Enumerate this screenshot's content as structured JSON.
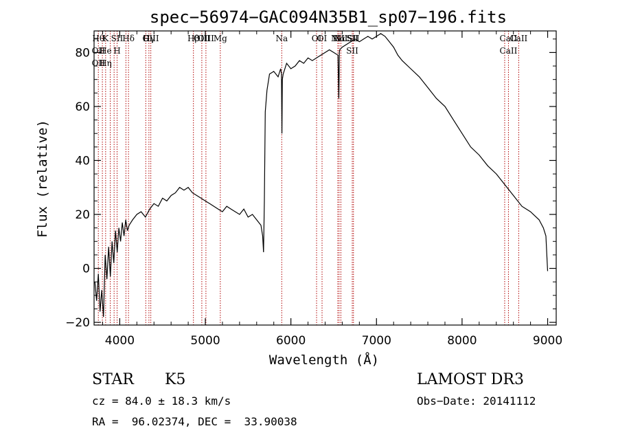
{
  "chart_data": {
    "type": "line",
    "title": "spec−56974−GAC094N35B1_sp07−196.fits",
    "xlabel": "Wavelength (Å)",
    "ylabel": "Flux (relative)",
    "xlim": [
      3700,
      9100
    ],
    "ylim": [
      -21,
      88
    ],
    "xticks": [
      {
        "value": 4000,
        "label": "4000"
      },
      {
        "value": 5000,
        "label": "5000"
      },
      {
        "value": 6000,
        "label": "6000"
      },
      {
        "value": 7000,
        "label": "7000"
      },
      {
        "value": 8000,
        "label": "8000"
      },
      {
        "value": 9000,
        "label": "9000"
      }
    ],
    "yticks": [
      {
        "value": -20,
        "label": "−20"
      },
      {
        "value": 0,
        "label": "0"
      },
      {
        "value": 20,
        "label": "20"
      },
      {
        "value": 40,
        "label": "40"
      },
      {
        "value": 60,
        "label": "60"
      },
      {
        "value": 80,
        "label": "80"
      }
    ],
    "series": [
      {
        "name": "flux",
        "x": [
          3710,
          3730,
          3750,
          3770,
          3790,
          3810,
          3830,
          3850,
          3870,
          3890,
          3910,
          3930,
          3950,
          3970,
          3990,
          4010,
          4030,
          4050,
          4070,
          4090,
          4110,
          4150,
          4200,
          4250,
          4300,
          4350,
          4400,
          4450,
          4500,
          4550,
          4600,
          4650,
          4700,
          4750,
          4800,
          4850,
          4900,
          4950,
          5000,
          5050,
          5100,
          5150,
          5200,
          5250,
          5300,
          5350,
          5400,
          5450,
          5500,
          5550,
          5600,
          5650,
          5670,
          5680,
          5690,
          5700,
          5720,
          5750,
          5800,
          5850,
          5880,
          5890,
          5895,
          5900,
          5910,
          5950,
          6000,
          6050,
          6100,
          6150,
          6200,
          6250,
          6300,
          6350,
          6400,
          6450,
          6500,
          6550,
          6560,
          6563,
          6566,
          6570,
          6600,
          6650,
          6700,
          6750,
          6800,
          6850,
          6900,
          6950,
          7000,
          7050,
          7100,
          7150,
          7200,
          7250,
          7300,
          7400,
          7500,
          7600,
          7700,
          7800,
          7900,
          8000,
          8100,
          8200,
          8300,
          8400,
          8500,
          8600,
          8700,
          8800,
          8900,
          8950,
          8980,
          9000
        ],
        "values": [
          -5,
          -12,
          -2,
          -16,
          -8,
          -18,
          5,
          -4,
          8,
          -3,
          10,
          2,
          14,
          6,
          15,
          10,
          17,
          12,
          18,
          14,
          16,
          18,
          20,
          21,
          19,
          22,
          24,
          23,
          26,
          25,
          27,
          28,
          30,
          29,
          30,
          28,
          27,
          26,
          25,
          24,
          23,
          22,
          21,
          23,
          22,
          21,
          20,
          22,
          19,
          20,
          18,
          16,
          12,
          6,
          25,
          58,
          66,
          72,
          73,
          71,
          74,
          72,
          50,
          70,
          72,
          76,
          74,
          75,
          77,
          76,
          78,
          77,
          78,
          79,
          80,
          81,
          80,
          79,
          63,
          70,
          80,
          81,
          82,
          83,
          84,
          85,
          84,
          85,
          86,
          85,
          86,
          87,
          86,
          84,
          82,
          79,
          77,
          74,
          71,
          67,
          63,
          60,
          55,
          50,
          45,
          42,
          38,
          35,
          31,
          27,
          23,
          21,
          18,
          15,
          12,
          -1
        ]
      }
    ],
    "lines": [
      {
        "wl": 3750,
        "labels": [
          "Hθ",
          "OII",
          "OII"
        ]
      },
      {
        "wl": 3797,
        "labels": []
      },
      {
        "wl": 3835,
        "labels": [
          "K",
          "He",
          "Hη"
        ]
      },
      {
        "wl": 3889,
        "labels": []
      },
      {
        "wl": 3934,
        "labels": []
      },
      {
        "wl": 3969,
        "labels": [
          "SII",
          "H"
        ]
      },
      {
        "wl": 4072,
        "labels": []
      },
      {
        "wl": 4102,
        "labels": [
          "Hδ"
        ]
      },
      {
        "wl": 4304,
        "labels": [
          "G"
        ]
      },
      {
        "wl": 4341,
        "labels": [
          "Hγ"
        ]
      },
      {
        "wl": 4363,
        "labels": [
          "OIII"
        ]
      },
      {
        "wl": 4861,
        "labels": [
          "Hβ"
        ]
      },
      {
        "wl": 4959,
        "labels": [
          "OIII"
        ]
      },
      {
        "wl": 5007,
        "labels": [
          "OIII"
        ]
      },
      {
        "wl": 5175,
        "labels": [
          "Mg"
        ]
      },
      {
        "wl": 5893,
        "labels": [
          "Na"
        ]
      },
      {
        "wl": 6300,
        "labels": [
          "OI"
        ]
      },
      {
        "wl": 6364,
        "labels": [
          "OI"
        ]
      },
      {
        "wl": 6548,
        "labels": [
          "NII"
        ]
      },
      {
        "wl": 6563,
        "labels": [
          "Hα"
        ]
      },
      {
        "wl": 6584,
        "labels": [
          "NII"
        ]
      },
      {
        "wl": 6717,
        "labels": [
          "SII",
          "SII"
        ]
      },
      {
        "wl": 6731,
        "labels": [
          "SII"
        ]
      },
      {
        "wl": 8498,
        "labels": []
      },
      {
        "wl": 8542,
        "labels": [
          "CaII",
          "CaII"
        ]
      },
      {
        "wl": 8662,
        "labels": [
          "CaII"
        ]
      }
    ]
  },
  "info": {
    "type_label": "STAR",
    "subclass": "K5",
    "survey": "LAMOST DR3",
    "cz": "cz = 84.0 ± 18.3 km/s",
    "obs_date": "Obs−Date: 20141112",
    "coords": "RA =  96.02374, DEC =  33.90038"
  },
  "colors": {
    "line_marker": "#b00000",
    "spectrum": "#000000",
    "axis": "#000000"
  }
}
